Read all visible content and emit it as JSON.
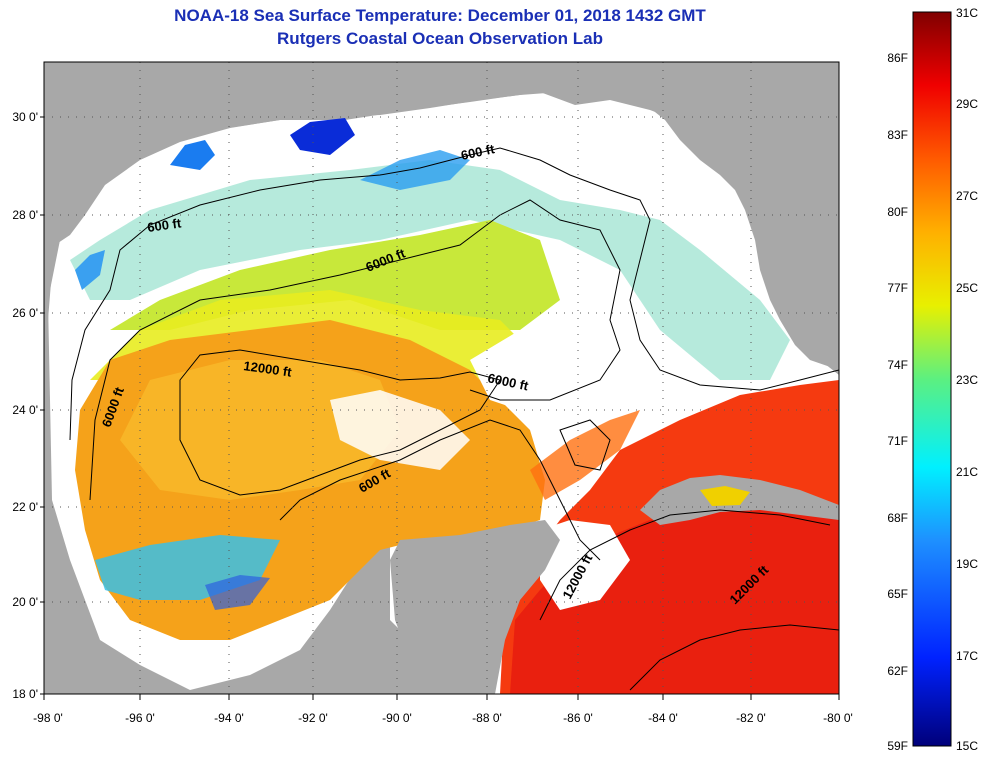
{
  "title": "NOAA-18 Sea Surface Temperature:  December 01, 2018 1432 GMT",
  "subtitle": "Rutgers Coastal Ocean Observation Lab",
  "colors": {
    "land": "#a8a8a8",
    "cloud": "#ffffff",
    "contour": "#000000",
    "title": "#1a2fb5"
  },
  "axes": {
    "lon_labels": [
      "-98 0'",
      "-96 0'",
      "-94 0'",
      "-92 0'",
      "-90 0'",
      "-88 0'",
      "-86 0'",
      "-84 0'",
      "-82 0'",
      "-80 0'"
    ],
    "lat_labels": [
      "30 0'",
      "28 0'",
      "26 0'",
      "24 0'",
      "22 0'",
      "20 0'",
      "18 0'"
    ]
  },
  "contour_labels": [
    {
      "text": "600 ft"
    },
    {
      "text": "600 ft"
    },
    {
      "text": "6000 ft"
    },
    {
      "text": "6000 ft"
    },
    {
      "text": "12000 ft"
    },
    {
      "text": "6000 ft"
    },
    {
      "text": "600 ft"
    },
    {
      "text": "12000 ft"
    },
    {
      "text": "12000 ft"
    }
  ],
  "colorbar": {
    "celsius": [
      "31C",
      "29C",
      "27C",
      "25C",
      "23C",
      "21C",
      "19C",
      "17C",
      "15C"
    ],
    "fahrenheit": [
      "86F",
      "83F",
      "80F",
      "77F",
      "74F",
      "71F",
      "68F",
      "65F",
      "62F",
      "59F"
    ]
  }
}
